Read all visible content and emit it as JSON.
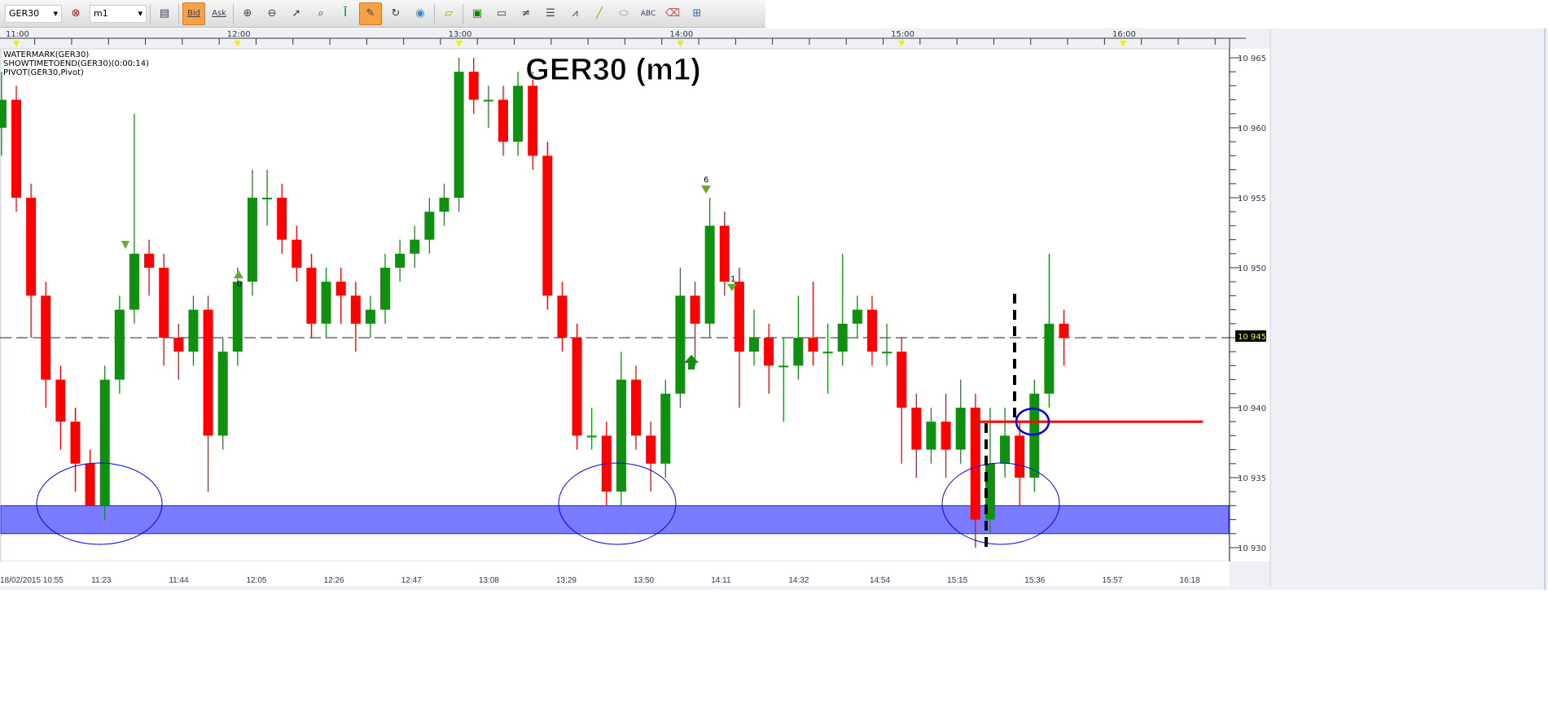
{
  "toolbar": {
    "symbol": "GER30",
    "timeframe": "m1",
    "bid_label": "Bid",
    "ask_label": "Ask",
    "bid_active": true,
    "icons": [
      "chart-type-icon",
      "zoom-in-icon",
      "zoom-out-icon",
      "cursor-icon",
      "zoom-box-icon",
      "fit-icon",
      "draw-mode-icon",
      "rotate-icon",
      "globe-icon",
      "ruler-icon",
      "image-icon",
      "window-icon",
      "fibonacci-icon",
      "list-icon",
      "trendline-fan-icon",
      "line-icon",
      "ellipse-icon",
      "text-icon",
      "eraser-icon",
      "tree-icon"
    ]
  },
  "watermark": "GER30 (m1)",
  "indicators": [
    "WATERMARK(GER30)",
    "SHOWTIMETOEND(GER30)(0:00:14)",
    "PIVOT(GER30,Pivot)"
  ],
  "top_time_labels": [
    "11:00",
    "12:00",
    "13:00",
    "14:00",
    "15:00",
    "16:00"
  ],
  "bottom_time_labels": [
    "18/02/2015 10:55",
    "11:23",
    "11:44",
    "12:05",
    "12:26",
    "12:47",
    "13:08",
    "13:29",
    "13:50",
    "14:11",
    "14:32",
    "14:54",
    "15:15",
    "15:36",
    "15:57",
    "16:18"
  ],
  "price_labels": [
    "10 965",
    "10 960",
    "10 955",
    "10 950",
    "10 945",
    "10 940",
    "10 935",
    "10 930"
  ],
  "current_price_label": "10 945",
  "markers": [
    {
      "label": "6",
      "dir": "down"
    },
    {
      "label": "0",
      "dir": "up"
    },
    {
      "label": "1",
      "dir": "down"
    }
  ],
  "colors": {
    "up": "#109010",
    "down": "#ff0000",
    "zone": "#7b7bff",
    "ellipse": "#0000ff",
    "level": "#ff0000"
  },
  "chart_data": {
    "type": "candlestick",
    "symbol": "GER30",
    "timeframe": "m1",
    "start_time": "10:56",
    "candle_step_minutes": 4,
    "ylim": [
      10929.5,
      10966
    ],
    "candles": [
      [
        10960,
        10964,
        10958,
        10962
      ],
      [
        10962,
        10963,
        10954,
        10955
      ],
      [
        10955,
        10956,
        10945,
        10948
      ],
      [
        10948,
        10949,
        10940,
        10942
      ],
      [
        10942,
        10943,
        10937,
        10939
      ],
      [
        10939,
        10940,
        10934,
        10936
      ],
      [
        10936,
        10937,
        10933,
        10933
      ],
      [
        10933,
        10943,
        10932,
        10942
      ],
      [
        10942,
        10948,
        10941,
        10947
      ],
      [
        10947,
        10961,
        10946,
        10951
      ],
      [
        10951,
        10952,
        10948,
        10950
      ],
      [
        10950,
        10951,
        10943,
        10945
      ],
      [
        10945,
        10946,
        10942,
        10944
      ],
      [
        10944,
        10948,
        10943,
        10947
      ],
      [
        10947,
        10948,
        10934,
        10938
      ],
      [
        10938,
        10945,
        10937,
        10944
      ],
      [
        10944,
        10950,
        10943,
        10949
      ],
      [
        10949,
        10957,
        10948,
        10955
      ],
      [
        10955,
        10957,
        10953,
        10955
      ],
      [
        10955,
        10956,
        10951,
        10952
      ],
      [
        10952,
        10953,
        10949,
        10950
      ],
      [
        10950,
        10951,
        10945,
        10946
      ],
      [
        10946,
        10950,
        10945,
        10949
      ],
      [
        10949,
        10950,
        10946,
        10948
      ],
      [
        10948,
        10949,
        10944,
        10946
      ],
      [
        10946,
        10948,
        10945,
        10947
      ],
      [
        10947,
        10951,
        10946,
        10950
      ],
      [
        10950,
        10952,
        10949,
        10951
      ],
      [
        10951,
        10953,
        10950,
        10952
      ],
      [
        10952,
        10955,
        10951,
        10954
      ],
      [
        10954,
        10956,
        10953,
        10955
      ],
      [
        10955,
        10965,
        10954,
        10964
      ],
      [
        10964,
        10965,
        10961,
        10962
      ],
      [
        10962,
        10963,
        10960,
        10962
      ],
      [
        10962,
        10963,
        10958,
        10959
      ],
      [
        10959,
        10964,
        10958,
        10963
      ],
      [
        10963,
        10964,
        10957,
        10958
      ],
      [
        10958,
        10959,
        10947,
        10948
      ],
      [
        10948,
        10949,
        10944,
        10945
      ],
      [
        10945,
        10946,
        10937,
        10938
      ],
      [
        10938,
        10940,
        10937,
        10938
      ],
      [
        10938,
        10939,
        10933,
        10934
      ],
      [
        10934,
        10944,
        10933,
        10942
      ],
      [
        10942,
        10943,
        10937,
        10938
      ],
      [
        10938,
        10939,
        10934,
        10936
      ],
      [
        10936,
        10942,
        10935,
        10941
      ],
      [
        10941,
        10950,
        10940,
        10948
      ],
      [
        10948,
        10949,
        10943,
        10946
      ],
      [
        10946,
        10955,
        10945,
        10953
      ],
      [
        10953,
        10954,
        10948,
        10949
      ],
      [
        10949,
        10950,
        10940,
        10944
      ],
      [
        10944,
        10947,
        10943,
        10945
      ],
      [
        10945,
        10946,
        10941,
        10943
      ],
      [
        10943,
        10945,
        10939,
        10943
      ],
      [
        10943,
        10948,
        10942,
        10945
      ],
      [
        10945,
        10949,
        10943,
        10944
      ],
      [
        10944,
        10946,
        10941,
        10944
      ],
      [
        10944,
        10951,
        10943,
        10946
      ],
      [
        10946,
        10948,
        10945,
        10947
      ],
      [
        10947,
        10948,
        10943,
        10944
      ],
      [
        10944,
        10946,
        10943,
        10944
      ],
      [
        10944,
        10945,
        10936,
        10940
      ],
      [
        10940,
        10941,
        10935,
        10937
      ],
      [
        10937,
        10940,
        10936,
        10939
      ],
      [
        10939,
        10941,
        10935,
        10937
      ],
      [
        10937,
        10942,
        10936,
        10940
      ],
      [
        10940,
        10941,
        10930,
        10932
      ],
      [
        10932,
        10940,
        10931,
        10936
      ],
      [
        10936,
        10940,
        10935,
        10938
      ],
      [
        10938,
        10939,
        10933,
        10935
      ],
      [
        10935,
        10942,
        10934,
        10941
      ],
      [
        10941,
        10951,
        10940,
        10946
      ],
      [
        10946,
        10947,
        10943,
        10945
      ]
    ],
    "current_price": 10945,
    "support_zone": [
      10931,
      10933
    ],
    "resistance_level": 10939,
    "grid": false
  }
}
